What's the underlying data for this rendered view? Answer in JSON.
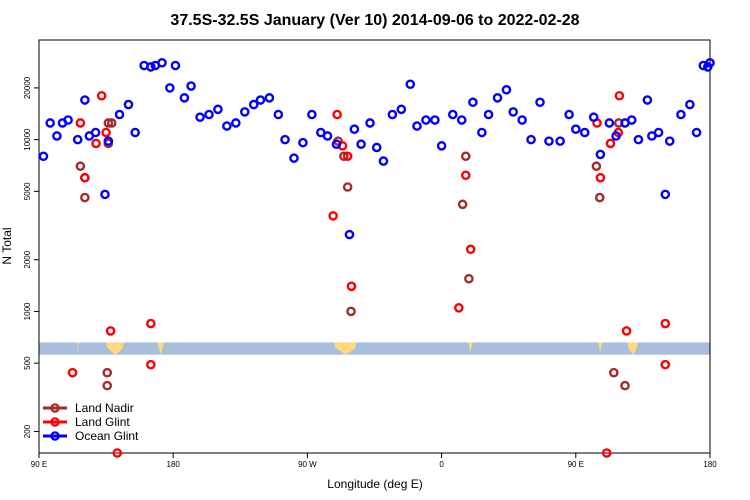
{
  "chart_data": {
    "type": "scatter",
    "title": "37.5S-32.5S January (Ver 10)   2014-09-06 to 2022-02-28",
    "xlabel": "Longitude (deg E)",
    "ylabel": "N Total",
    "xlim": [
      90,
      390
    ],
    "ylim": [
      150,
      38000
    ],
    "yscale": "log",
    "x_ticks": [
      {
        "value": 90,
        "label": "90 E"
      },
      {
        "value": 150,
        "label": "180"
      },
      {
        "value": 210,
        "label": "90 W"
      },
      {
        "value": 270,
        "label": "0"
      },
      {
        "value": 330,
        "label": "90 E"
      },
      {
        "value": 390,
        "label": "180"
      }
    ],
    "y_ticks": [
      {
        "value": 200,
        "label": "200"
      },
      {
        "value": 500,
        "label": "500"
      },
      {
        "value": 1000,
        "label": "1000"
      },
      {
        "value": 2000,
        "label": "2000"
      },
      {
        "value": 5000,
        "label": "5000"
      },
      {
        "value": 10000,
        "label": "10000"
      },
      {
        "value": 20000,
        "label": "20000"
      }
    ],
    "legend_position": "bottom-left",
    "band": {
      "ocean_color": "#a7bedc",
      "land_color": "#ffd97a",
      "ymin": 560,
      "ymax": 660,
      "land_spans": [
        [
          107,
          108
        ],
        [
          120,
          128
        ],
        [
          143,
          146
        ],
        [
          222,
          232
        ],
        [
          282,
          284
        ],
        [
          340,
          342
        ],
        [
          353,
          358
        ]
      ]
    },
    "series": [
      {
        "name": "Land Nadir",
        "color": "#a52a2a",
        "points": [
          [
            108.5,
            7000
          ],
          [
            110.5,
            6000
          ],
          [
            110.5,
            4600
          ],
          [
            121,
            12500
          ],
          [
            121,
            9500
          ],
          [
            122.5,
            12500
          ],
          [
            120.5,
            370
          ],
          [
            120.5,
            440
          ],
          [
            223.7,
            9800
          ],
          [
            226.3,
            8000
          ],
          [
            228,
            5300
          ],
          [
            229.5,
            1000
          ],
          [
            279.4,
            4200
          ],
          [
            280.8,
            8000
          ],
          [
            282.2,
            1550
          ],
          [
            339.2,
            7000
          ],
          [
            340.7,
            4600
          ],
          [
            349.2,
            12500
          ],
          [
            352,
            370
          ],
          [
            347,
            440
          ]
        ]
      },
      {
        "name": "Land Glint",
        "color": "#ff0000",
        "points": [
          [
            108.5,
            12500
          ],
          [
            110.5,
            6000
          ],
          [
            115.5,
            9500
          ],
          [
            118,
            18000
          ],
          [
            120,
            11000
          ],
          [
            122,
            770
          ],
          [
            125,
            150
          ],
          [
            140,
            850
          ],
          [
            140,
            490
          ],
          [
            105,
            440
          ],
          [
            221.5,
            3600
          ],
          [
            223.3,
            14000
          ],
          [
            225.7,
            9200
          ],
          [
            228,
            8000
          ],
          [
            229.7,
            1400
          ],
          [
            277.7,
            1050
          ],
          [
            280.8,
            6200
          ],
          [
            283,
            2300
          ],
          [
            339.5,
            12500
          ],
          [
            341,
            6000
          ],
          [
            345.5,
            9500
          ],
          [
            349.5,
            18000
          ],
          [
            349,
            11000
          ],
          [
            352.7,
            770
          ],
          [
            343.8,
            150
          ],
          [
            370,
            850
          ],
          [
            370,
            490
          ]
        ]
      },
      {
        "name": "Ocean Glint",
        "color": "#0000ff",
        "points": [
          [
            92,
            8000
          ],
          [
            95,
            12500
          ],
          [
            98,
            10500
          ],
          [
            100.5,
            12500
          ],
          [
            103,
            13000
          ],
          [
            107.3,
            10000
          ],
          [
            110.5,
            17000
          ],
          [
            112.5,
            10500
          ],
          [
            115.3,
            11000
          ],
          [
            119.5,
            4800
          ],
          [
            121,
            9800
          ],
          [
            126,
            14000
          ],
          [
            130,
            16000
          ],
          [
            133,
            11000
          ],
          [
            137,
            27000
          ],
          [
            140,
            26500
          ],
          [
            142,
            27000
          ],
          [
            145,
            28000
          ],
          [
            148.5,
            20000
          ],
          [
            151,
            27000
          ],
          [
            155,
            17500
          ],
          [
            158,
            20500
          ],
          [
            162,
            13500
          ],
          [
            166,
            14000
          ],
          [
            170,
            15000
          ],
          [
            174,
            12000
          ],
          [
            178,
            12500
          ],
          [
            182,
            14500
          ],
          [
            186,
            16000
          ],
          [
            189,
            17000
          ],
          [
            193,
            17500
          ],
          [
            197,
            14000
          ],
          [
            200,
            10000
          ],
          [
            204,
            7800
          ],
          [
            208,
            9600
          ],
          [
            212,
            14000
          ],
          [
            216,
            11000
          ],
          [
            219,
            10500
          ],
          [
            223,
            9400
          ],
          [
            228.8,
            2800
          ],
          [
            231,
            11500
          ],
          [
            234,
            9400
          ],
          [
            238,
            12500
          ],
          [
            241,
            9000
          ],
          [
            244,
            7500
          ],
          [
            248,
            14000
          ],
          [
            252,
            15000
          ],
          [
            256,
            21000
          ],
          [
            259,
            12000
          ],
          [
            263,
            13000
          ],
          [
            267,
            13000
          ],
          [
            270,
            9200
          ],
          [
            275,
            14000
          ],
          [
            279,
            13000
          ],
          [
            284,
            16500
          ],
          [
            288,
            11000
          ],
          [
            291,
            14000
          ],
          [
            295,
            17500
          ],
          [
            299,
            19500
          ],
          [
            302,
            14500
          ],
          [
            306,
            13000
          ],
          [
            310,
            10000
          ],
          [
            314,
            16500
          ],
          [
            318,
            9800
          ],
          [
            323,
            9800
          ],
          [
            327,
            14000
          ],
          [
            330,
            11500
          ],
          [
            334,
            11000
          ],
          [
            338,
            13500
          ],
          [
            341,
            8200
          ],
          [
            345,
            12500
          ],
          [
            348,
            10500
          ],
          [
            352,
            12500
          ],
          [
            355,
            13000
          ],
          [
            358,
            10000
          ],
          [
            362,
            17000
          ],
          [
            364,
            10500
          ],
          [
            367,
            11000
          ],
          [
            370,
            4800
          ],
          [
            372,
            9800
          ],
          [
            377,
            14000
          ],
          [
            381,
            16000
          ],
          [
            384,
            11000
          ],
          [
            387,
            27000
          ],
          [
            389,
            26500
          ],
          [
            390,
            28000
          ]
        ]
      }
    ]
  }
}
